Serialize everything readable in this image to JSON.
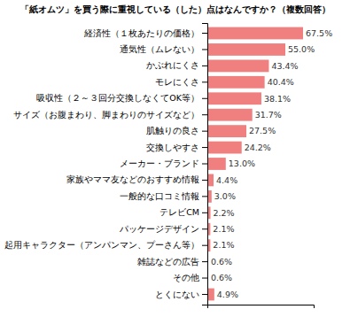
{
  "chart_data": {
    "type": "bar",
    "orientation": "horizontal",
    "title": "「紙オムツ」を買う際に重視している（した）点はなんですか？（複数回答）",
    "categories": [
      "経済性（１枚あたりの価格）",
      "通気性（ムレない）",
      "かぶれにくさ",
      "モレにくさ",
      "吸収性（２～３回分交換しなくてOK等）",
      "サイズ（お腹まわり、脚まわりのサイズなど）",
      "肌触りの良さ",
      "交換しやすさ",
      "メーカー・ブランド",
      "家族やママ友などのおすすめ情報",
      "一般的な口コミ情報",
      "テレビCM",
      "パッケージデザイン",
      "起用キャラクター（アンパンマン、プーさん等）",
      "雑誌などの広告",
      "その他",
      "とくにない"
    ],
    "values": [
      67.5,
      55.0,
      43.4,
      40.4,
      38.1,
      31.7,
      27.5,
      24.2,
      13.0,
      4.4,
      3.0,
      2.2,
      2.1,
      2.1,
      0.6,
      0.6,
      4.9
    ],
    "value_labels": [
      "67.5%",
      "55.0%",
      "43.4%",
      "40.4%",
      "38.1%",
      "31.7%",
      "27.5%",
      "24.2%",
      "13.0%",
      "4.4%",
      "3.0%",
      "2.2%",
      "2.1%",
      "2.1%",
      "0.6%",
      "0.6%",
      "4.9%"
    ],
    "color": "#F08080",
    "xlim": [
      0,
      75
    ],
    "data_labels": true,
    "tick_labels": "y",
    "grid": false
  }
}
